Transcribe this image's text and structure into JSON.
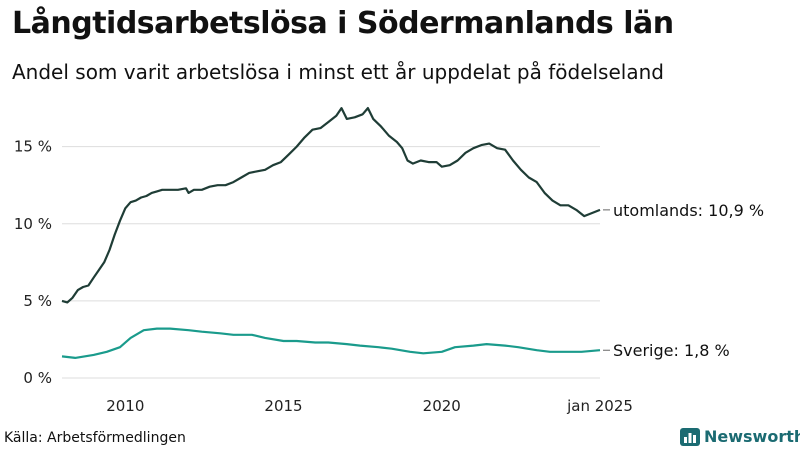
{
  "header": {
    "title": "Långtidsarbetslösa i Södermanlands län",
    "subtitle": "Andel som varit arbetslösa i minst ett år uppdelat på födelseland"
  },
  "footer": {
    "source": "Källa: Arbetsförmedlingen",
    "brand": "Newsworthy",
    "brand_icon": "bar-chart-icon"
  },
  "chart_data": {
    "type": "line",
    "ylim": [
      0,
      17.7
    ],
    "xlim": [
      "2008-01",
      "2025-01"
    ],
    "y_ticks": [
      0,
      5,
      10,
      15
    ],
    "y_tick_labels": [
      "0 %",
      "5 %",
      "10 %",
      "15 %"
    ],
    "x_ticks": [
      "2010-01",
      "2015-01",
      "2020-01",
      "2025-01"
    ],
    "x_tick_labels": [
      "2010",
      "2015",
      "2020",
      "jan 2025"
    ],
    "grid": "horizontal",
    "legend": "direct labels at line ends",
    "series": [
      {
        "name": "utomlands",
        "end_label": "utomlands: 10,9 %",
        "color": "#1f3d36",
        "points": [
          [
            "2008-01",
            5.0
          ],
          [
            "2008-03",
            4.9
          ],
          [
            "2008-05",
            5.2
          ],
          [
            "2008-07",
            5.7
          ],
          [
            "2008-09",
            5.9
          ],
          [
            "2008-11",
            6.0
          ],
          [
            "2009-01",
            6.5
          ],
          [
            "2009-03",
            7.0
          ],
          [
            "2009-05",
            7.5
          ],
          [
            "2009-07",
            8.3
          ],
          [
            "2009-09",
            9.3
          ],
          [
            "2009-11",
            10.2
          ],
          [
            "2010-01",
            11.0
          ],
          [
            "2010-03",
            11.4
          ],
          [
            "2010-05",
            11.5
          ],
          [
            "2010-07",
            11.7
          ],
          [
            "2010-09",
            11.8
          ],
          [
            "2010-11",
            12.0
          ],
          [
            "2011-01",
            12.1
          ],
          [
            "2011-03",
            12.2
          ],
          [
            "2011-06",
            12.2
          ],
          [
            "2011-09",
            12.2
          ],
          [
            "2011-12",
            12.3
          ],
          [
            "2012-01",
            12.0
          ],
          [
            "2012-03",
            12.2
          ],
          [
            "2012-06",
            12.2
          ],
          [
            "2012-09",
            12.4
          ],
          [
            "2012-12",
            12.5
          ],
          [
            "2013-03",
            12.5
          ],
          [
            "2013-06",
            12.7
          ],
          [
            "2013-09",
            13.0
          ],
          [
            "2013-12",
            13.3
          ],
          [
            "2014-03",
            13.4
          ],
          [
            "2014-06",
            13.5
          ],
          [
            "2014-09",
            13.8
          ],
          [
            "2014-12",
            14.0
          ],
          [
            "2015-03",
            14.5
          ],
          [
            "2015-06",
            15.0
          ],
          [
            "2015-09",
            15.6
          ],
          [
            "2015-12",
            16.1
          ],
          [
            "2016-03",
            16.2
          ],
          [
            "2016-06",
            16.6
          ],
          [
            "2016-09",
            17.0
          ],
          [
            "2016-11",
            17.5
          ],
          [
            "2017-01",
            16.8
          ],
          [
            "2017-04",
            16.9
          ],
          [
            "2017-07",
            17.1
          ],
          [
            "2017-09",
            17.5
          ],
          [
            "2017-11",
            16.8
          ],
          [
            "2018-02",
            16.3
          ],
          [
            "2018-05",
            15.7
          ],
          [
            "2018-08",
            15.3
          ],
          [
            "2018-10",
            14.9
          ],
          [
            "2018-12",
            14.1
          ],
          [
            "2019-02",
            13.9
          ],
          [
            "2019-05",
            14.1
          ],
          [
            "2019-08",
            14.0
          ],
          [
            "2019-11",
            14.0
          ],
          [
            "2020-01",
            13.7
          ],
          [
            "2020-04",
            13.8
          ],
          [
            "2020-07",
            14.1
          ],
          [
            "2020-10",
            14.6
          ],
          [
            "2021-01",
            14.9
          ],
          [
            "2021-04",
            15.1
          ],
          [
            "2021-07",
            15.2
          ],
          [
            "2021-10",
            14.9
          ],
          [
            "2022-01",
            14.8
          ],
          [
            "2022-04",
            14.1
          ],
          [
            "2022-07",
            13.5
          ],
          [
            "2022-10",
            13.0
          ],
          [
            "2023-01",
            12.7
          ],
          [
            "2023-04",
            12.0
          ],
          [
            "2023-07",
            11.5
          ],
          [
            "2023-10",
            11.2
          ],
          [
            "2024-01",
            11.2
          ],
          [
            "2024-04",
            10.9
          ],
          [
            "2024-07",
            10.5
          ],
          [
            "2024-10",
            10.7
          ],
          [
            "2025-01",
            10.9
          ]
        ]
      },
      {
        "name": "Sverige",
        "end_label": "Sverige:  1,8 %",
        "color": "#1a9b8c",
        "points": [
          [
            "2008-01",
            1.4
          ],
          [
            "2008-06",
            1.3
          ],
          [
            "2009-01",
            1.5
          ],
          [
            "2009-06",
            1.7
          ],
          [
            "2009-11",
            2.0
          ],
          [
            "2010-03",
            2.6
          ],
          [
            "2010-08",
            3.1
          ],
          [
            "2011-01",
            3.2
          ],
          [
            "2011-06",
            3.2
          ],
          [
            "2012-01",
            3.1
          ],
          [
            "2012-06",
            3.0
          ],
          [
            "2013-01",
            2.9
          ],
          [
            "2013-06",
            2.8
          ],
          [
            "2014-01",
            2.8
          ],
          [
            "2014-06",
            2.6
          ],
          [
            "2015-01",
            2.4
          ],
          [
            "2015-06",
            2.4
          ],
          [
            "2016-01",
            2.3
          ],
          [
            "2016-06",
            2.3
          ],
          [
            "2017-01",
            2.2
          ],
          [
            "2017-06",
            2.1
          ],
          [
            "2018-01",
            2.0
          ],
          [
            "2018-06",
            1.9
          ],
          [
            "2019-01",
            1.7
          ],
          [
            "2019-06",
            1.6
          ],
          [
            "2020-01",
            1.7
          ],
          [
            "2020-06",
            2.0
          ],
          [
            "2021-01",
            2.1
          ],
          [
            "2021-06",
            2.2
          ],
          [
            "2022-01",
            2.1
          ],
          [
            "2022-06",
            2.0
          ],
          [
            "2023-01",
            1.8
          ],
          [
            "2023-06",
            1.7
          ],
          [
            "2024-01",
            1.7
          ],
          [
            "2024-06",
            1.7
          ],
          [
            "2025-01",
            1.8
          ]
        ]
      }
    ]
  }
}
